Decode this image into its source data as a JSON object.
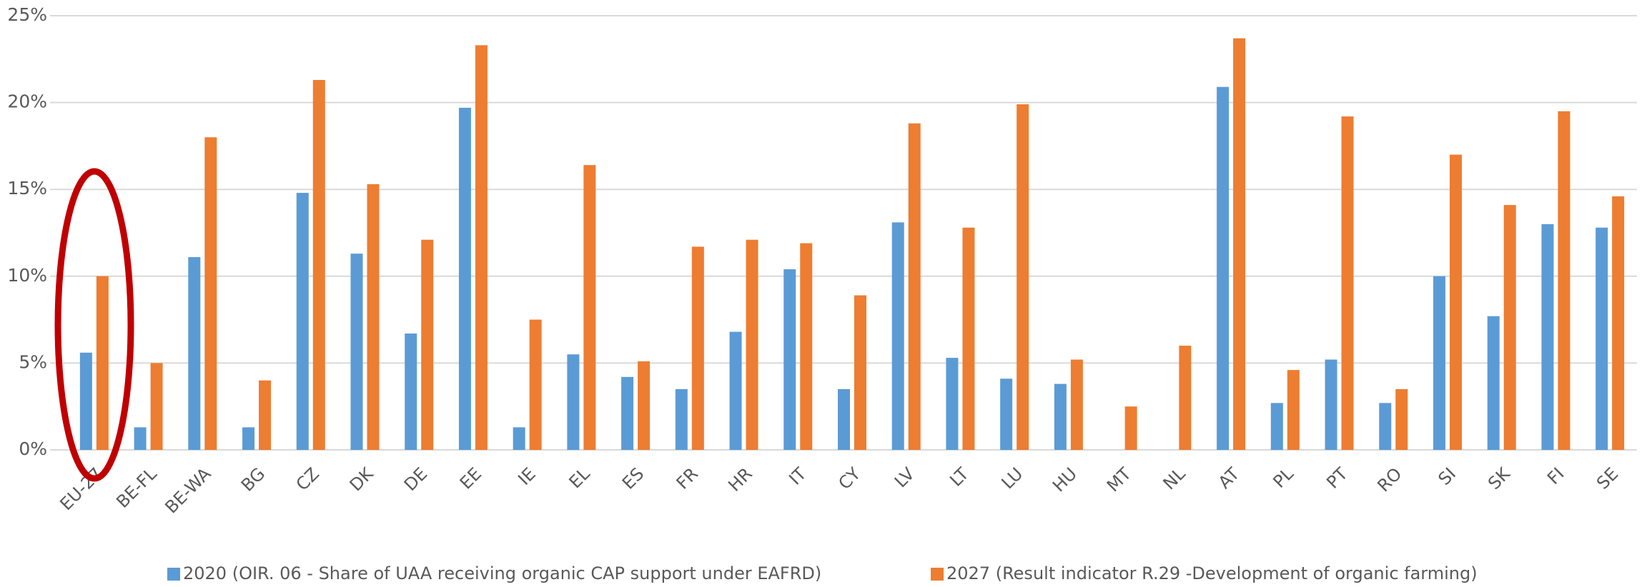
{
  "chart_data": {
    "type": "bar",
    "categories": [
      "EU-27",
      "BE-FL",
      "BE-WA",
      "BG",
      "CZ",
      "DK",
      "DE",
      "EE",
      "IE",
      "EL",
      "ES",
      "FR",
      "HR",
      "IT",
      "CY",
      "LV",
      "LT",
      "LU",
      "HU",
      "MT",
      "NL",
      "AT",
      "PL",
      "PT",
      "RO",
      "SI",
      "SK",
      "FI",
      "SE"
    ],
    "series": [
      {
        "name": "2020 (OIR. 06 -  Share of UAA receiving organic CAP support under EAFRD)",
        "color": "#5b9bd5",
        "values": [
          5.6,
          1.3,
          11.1,
          1.3,
          14.8,
          11.3,
          6.7,
          19.7,
          1.3,
          5.5,
          4.2,
          3.5,
          6.8,
          10.4,
          3.5,
          13.1,
          5.3,
          4.1,
          3.8,
          null,
          null,
          20.9,
          2.7,
          5.2,
          2.7,
          10.0,
          7.7,
          13.0,
          12.8
        ]
      },
      {
        "name": "2027 (Result indicator R.29 -Development of organic farming)",
        "color": "#ed7d31",
        "values": [
          10.0,
          5.0,
          18.0,
          4.0,
          21.3,
          15.3,
          12.1,
          23.3,
          7.5,
          16.4,
          5.1,
          11.7,
          12.1,
          11.9,
          8.9,
          18.8,
          12.8,
          19.9,
          5.2,
          2.5,
          6.0,
          23.7,
          4.6,
          19.2,
          3.5,
          17.0,
          14.1,
          19.5,
          14.6
        ]
      }
    ],
    "ylim": [
      0,
      25
    ],
    "yticks": [
      {
        "value": 0,
        "label": "0%"
      },
      {
        "value": 5,
        "label": "5%"
      },
      {
        "value": 10,
        "label": "10%"
      },
      {
        "value": 15,
        "label": "15%"
      },
      {
        "value": 20,
        "label": "20%"
      },
      {
        "value": 25,
        "label": "25%"
      }
    ],
    "grid": true,
    "legend": "bottom"
  }
}
